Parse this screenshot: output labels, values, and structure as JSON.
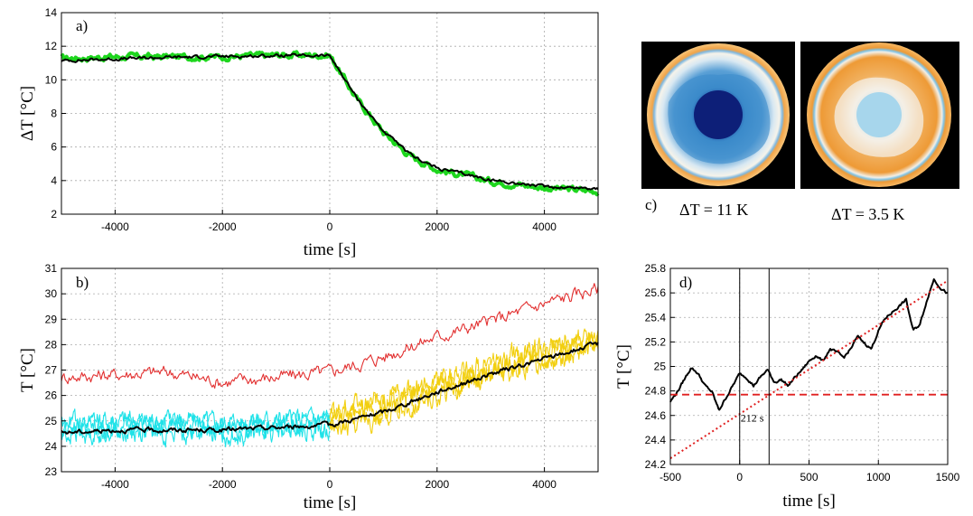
{
  "chart_data": [
    {
      "panel": "a)",
      "type": "line",
      "xlabel": "time [s]",
      "ylabel": "ΔT [°C]",
      "xlim": [
        -5000,
        5000
      ],
      "ylim": [
        2,
        14
      ],
      "xticks": [
        -4000,
        -2000,
        0,
        2000,
        4000
      ],
      "yticks": [
        2,
        4,
        6,
        8,
        10,
        12,
        14
      ],
      "grid": true,
      "series": [
        {
          "color": "#1ed61e",
          "style": "noisy band",
          "x": [
            -5000,
            -4000,
            -3000,
            -2000,
            -1000,
            0,
            500,
            1000,
            1500,
            2000,
            3000,
            4000,
            5000
          ],
          "y": [
            11.4,
            11.5,
            11.5,
            11.5,
            11.6,
            11.6,
            9.0,
            7.0,
            5.6,
            4.8,
            4.1,
            3.7,
            3.5
          ]
        },
        {
          "color": "#000000",
          "style": "line",
          "x": [
            -5000,
            -4000,
            -3000,
            -2000,
            -1000,
            0,
            500,
            1000,
            1500,
            2000,
            3000,
            4000,
            5000
          ],
          "y": [
            11.2,
            11.3,
            11.4,
            11.45,
            11.5,
            11.5,
            9.0,
            7.0,
            5.6,
            4.8,
            4.1,
            3.7,
            3.6
          ]
        }
      ]
    },
    {
      "panel": "b)",
      "type": "line",
      "xlabel": "time [s]",
      "ylabel": "T [°C]",
      "xlim": [
        -5000,
        5000
      ],
      "ylim": [
        23,
        31
      ],
      "xticks": [
        -4000,
        -2000,
        0,
        2000,
        4000
      ],
      "yticks": [
        23,
        24,
        25,
        26,
        27,
        28,
        29,
        30,
        31
      ],
      "grid": true,
      "series": [
        {
          "color": "#e23030",
          "x": [
            -5000,
            -4000,
            -3000,
            -2000,
            -1000,
            0,
            1000,
            2000,
            3000,
            4000,
            5000
          ],
          "y": [
            26.9,
            27.0,
            27.1,
            26.7,
            26.9,
            27.1,
            27.7,
            28.5,
            29.1,
            29.8,
            30.4
          ]
        },
        {
          "color": "#1fe2e8",
          "x": [
            -5000,
            -4000,
            -3000,
            -2000,
            -1000,
            0
          ],
          "y": [
            24.7,
            24.8,
            24.8,
            24.7,
            24.8,
            24.9
          ]
        },
        {
          "color": "#f2cf10",
          "x": [
            0,
            1000,
            2000,
            3000,
            4000,
            5000
          ],
          "y": [
            25.0,
            25.5,
            26.3,
            27.0,
            27.6,
            28.2
          ]
        },
        {
          "color": "#000000",
          "x": [
            -5000,
            -4000,
            -3000,
            -2000,
            -1000,
            0,
            1000,
            2000,
            3000,
            4000,
            5000
          ],
          "y": [
            24.6,
            24.7,
            24.7,
            24.7,
            24.8,
            24.9,
            25.4,
            26.2,
            26.9,
            27.5,
            28.1
          ]
        }
      ]
    },
    {
      "panel": "d)",
      "type": "line",
      "xlabel": "time [s]",
      "ylabel": "T [°C]",
      "xlim": [
        -500,
        1500
      ],
      "ylim": [
        24.2,
        25.8
      ],
      "xticks": [
        -500,
        0,
        500,
        1000,
        1500
      ],
      "yticks": [
        24.2,
        24.4,
        24.6,
        24.8,
        25,
        25.2,
        25.4,
        25.6,
        25.8
      ],
      "grid": true,
      "annotation": "212 s",
      "vlines": [
        0,
        212
      ],
      "hline": {
        "y": 24.77,
        "color": "#e02020",
        "style": "dashed"
      },
      "fit": {
        "color": "#e02020",
        "style": "dotted",
        "x": [
          -500,
          1500
        ],
        "y": [
          24.25,
          25.7
        ]
      },
      "series": [
        {
          "color": "#000000",
          "x": [
            -500,
            -450,
            -400,
            -350,
            -300,
            -250,
            -200,
            -150,
            -100,
            -50,
            0,
            50,
            100,
            150,
            200,
            250,
            300,
            350,
            400,
            450,
            500,
            550,
            600,
            650,
            700,
            750,
            800,
            850,
            900,
            950,
            1000,
            1050,
            1100,
            1150,
            1200,
            1250,
            1300,
            1350,
            1400,
            1450,
            1500
          ],
          "y": [
            24.72,
            24.8,
            24.9,
            25.0,
            24.95,
            24.85,
            24.8,
            24.65,
            24.75,
            24.85,
            24.95,
            24.92,
            24.85,
            24.92,
            24.98,
            24.88,
            24.9,
            24.85,
            24.92,
            24.98,
            25.05,
            25.1,
            25.05,
            25.15,
            25.12,
            25.08,
            25.15,
            25.25,
            25.2,
            25.15,
            25.3,
            25.4,
            25.45,
            25.5,
            25.55,
            25.3,
            25.35,
            25.55,
            25.72,
            25.65,
            25.6
          ]
        }
      ]
    }
  ],
  "panel_c": {
    "label": "c)",
    "left_caption": "ΔT = 11 K",
    "right_caption": "ΔT = 3.5 K",
    "colors": {
      "hot": "#f2a448",
      "cold": "#3a88c8",
      "core": "#0a1f7a"
    }
  }
}
